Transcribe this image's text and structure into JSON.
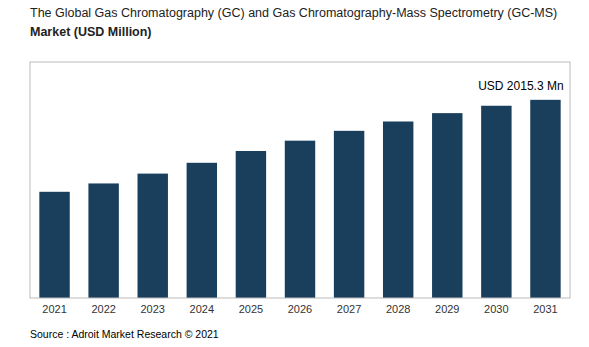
{
  "chart_data": {
    "type": "bar",
    "title": "The Global Gas Chromatography (GC) and Gas Chromatography-Mass Spectrometry (GC-MS)",
    "subtitle": "Market (USD Million)",
    "categories": [
      "2021",
      "2022",
      "2023",
      "2024",
      "2025",
      "2026",
      "2027",
      "2028",
      "2029",
      "2030",
      "2031"
    ],
    "values": [
      1080,
      1165,
      1265,
      1375,
      1495,
      1600,
      1700,
      1795,
      1880,
      1955,
      2015.3
    ],
    "color": "#1a3f5c",
    "ylim": [
      0,
      2400
    ],
    "grid": false,
    "tick_labels": "x",
    "annotation": "USD 2015.3 Mn",
    "source": "Source : Adroit Market Research © 2021"
  }
}
